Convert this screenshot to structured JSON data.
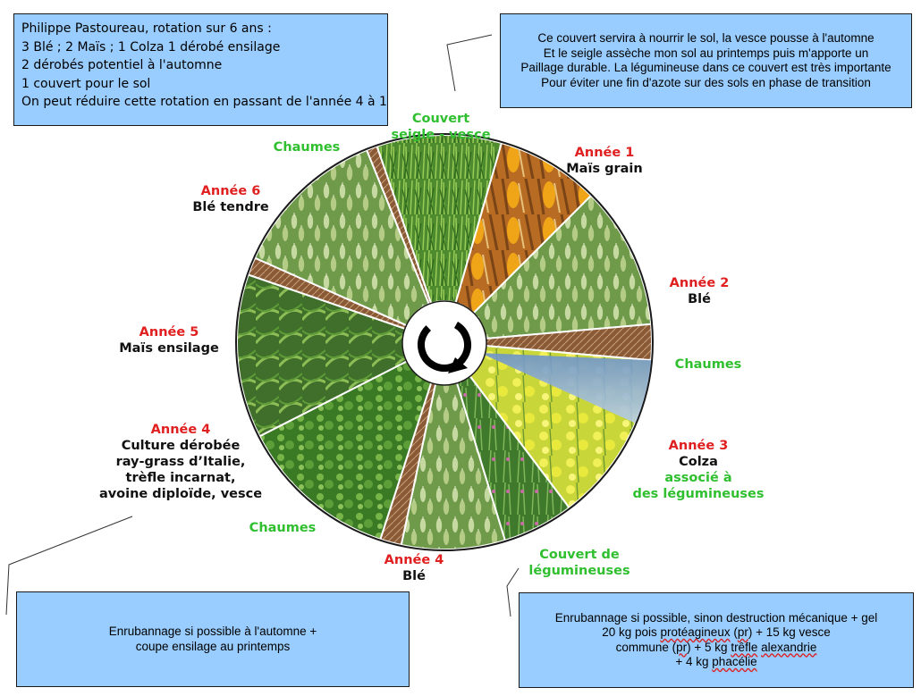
{
  "top_left_note": [
    "Philippe Pastoureau, rotation sur 6 ans :",
    "3 Blé ; 2 Maïs ; 1 Colza  1 dérobé ensilage",
    " 2 dérobés potentiel à l'automne",
    " 1 couvert pour le sol",
    "On peut réduire cette rotation en passant de l'année 4 à 1"
  ],
  "top_right_note": [
    "Ce couvert servira à nourrir le sol, la vesce pousse à l'automne",
    "Et le seigle assèche mon sol au printemps puis m'apporte un",
    "Paillage durable. La légumineuse dans ce couvert est très importante",
    "Pour éviter une fin d'azote sur des sols en phase de transition"
  ],
  "bottom_left_note": [
    "Enrubannage si possible à l'automne +",
    "coupe ensilage au printemps"
  ],
  "bottom_right_note": {
    "line1": "Enrubannage si possible, sinon destruction mécanique + gel",
    "line2_a": "20 kg pois ",
    "line2_b": "protéagineux",
    "line2_c": " (",
    "line2_d": "pr",
    "line2_e": ") + 15 kg vesce",
    "line3_a": "commune (",
    "line3_b": "pr",
    "line3_c": ") + 5 kg ",
    "line3_d": "trêfle",
    "line3_e": " ",
    "line3_f": "alexandrie",
    "line4_a": "+ 4 kg ",
    "line4_b": "phacélie"
  },
  "labels": {
    "couvert_seigle": [
      "Couvert",
      "seigle - vesce"
    ],
    "chaumes_top": "Chaumes",
    "annee1": {
      "year": "Année 1",
      "crop": "Maïs grain"
    },
    "annee2": {
      "year": "Année 2",
      "crop": "Blé"
    },
    "chaumes_right": "Chaumes",
    "annee3": {
      "year": "Année 3",
      "crop": "Colza",
      "extra": [
        "associé à",
        "des légumineuses"
      ]
    },
    "couvert_legumineuses": [
      "Couvert de",
      "légumineuses"
    ],
    "annee4_ble": {
      "year": "Année 4",
      "crop": "Blé"
    },
    "chaumes_bottom": "Chaumes",
    "annee4_derobee": {
      "year": "Année 4",
      "crop": [
        "Culture dérobée",
        "ray-grass d’Italie,",
        "trèfle incarnat,",
        "avoine diploïde, vesce"
      ]
    },
    "annee5": {
      "year": "Année 5",
      "crop": "Maïs ensilage"
    },
    "annee6": {
      "year": "Année 6",
      "crop": "Blé tendre"
    }
  },
  "colors": {
    "box_fill": "#99ccff",
    "year_red": "#e02020",
    "cover_green": "#2fbf2f",
    "stubble_brown": "#8a5a36"
  },
  "wheel_segments": [
    {
      "name": "couvert-seigle-vesce",
      "kind": "grass"
    },
    {
      "name": "annee1-mais-grain",
      "kind": "corn"
    },
    {
      "name": "annee2-ble",
      "kind": "wheat"
    },
    {
      "name": "chaumes-right",
      "kind": "stubble"
    },
    {
      "name": "annee3-colza",
      "kind": "colza"
    },
    {
      "name": "couvert-legumineuses",
      "kind": "legume"
    },
    {
      "name": "annee4-ble",
      "kind": "wheat"
    },
    {
      "name": "chaumes-bottom",
      "kind": "stubble"
    },
    {
      "name": "annee4-culture-derobee",
      "kind": "clover"
    },
    {
      "name": "annee5-mais-ensilage",
      "kind": "maize-field"
    },
    {
      "name": "chaumes-left",
      "kind": "stubble"
    },
    {
      "name": "annee6-ble-tendre",
      "kind": "wheat"
    },
    {
      "name": "chaumes-top",
      "kind": "stubble"
    }
  ],
  "center_icon": "rotation-arrow-icon"
}
